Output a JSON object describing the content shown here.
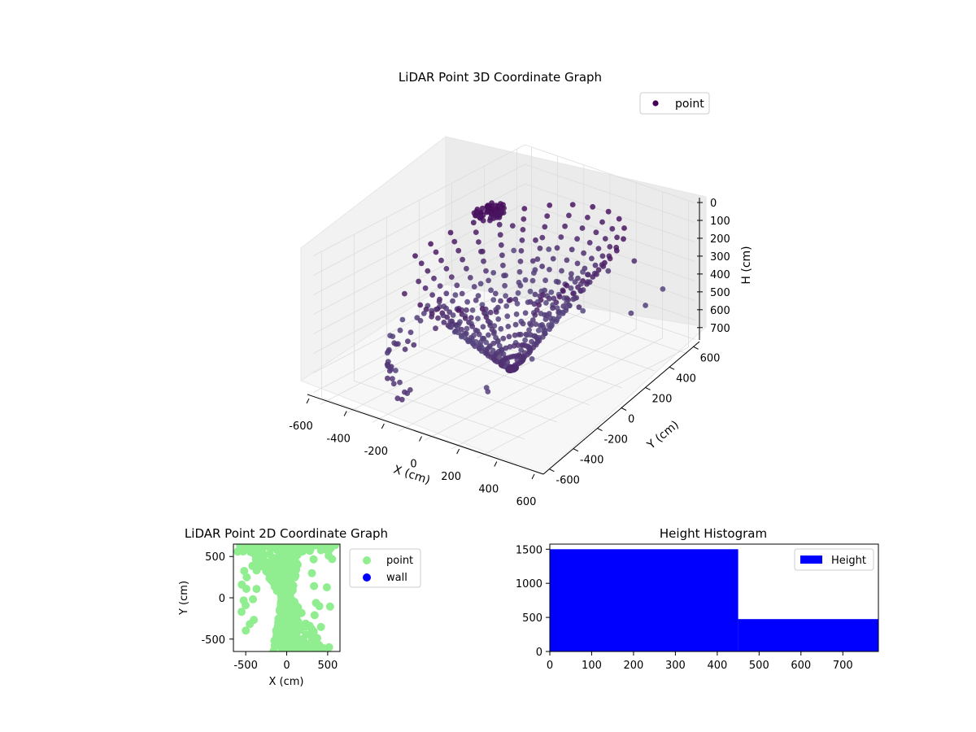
{
  "chart_data": [
    {
      "type": "scatter",
      "projection": "3d",
      "title": "LiDAR Point 3D Coordinate Graph",
      "xlabel": "X (cm)",
      "ylabel": "Y (cm)",
      "zlabel": "H (cm)",
      "xlim": [
        -650,
        650
      ],
      "ylim": [
        -650,
        650
      ],
      "zlim": [
        750,
        0
      ],
      "xticks": [
        -600,
        -400,
        -200,
        0,
        200,
        400,
        600
      ],
      "yticks": [
        -600,
        -400,
        -200,
        0,
        200,
        400,
        600
      ],
      "zticks": [
        0,
        100,
        200,
        300,
        400,
        500,
        600,
        700
      ],
      "zaxis_inverted": true,
      "colormap": "viridis",
      "legend": {
        "entries": [
          "point"
        ],
        "placement": "upper-right"
      },
      "series": [
        {
          "name": "point",
          "color": "#440154"
        }
      ],
      "grid": true
    },
    {
      "type": "scatter",
      "title": "LiDAR Point 2D Coordinate Graph",
      "xlabel": "X (cm)",
      "ylabel": "Y (cm)",
      "xlim": [
        -650,
        650
      ],
      "ylim": [
        -650,
        650
      ],
      "xticks": [
        -500,
        0,
        500
      ],
      "yticks": [
        -500,
        0,
        500
      ],
      "legend": {
        "entries": [
          "point",
          "wall"
        ],
        "placement": "outside-right"
      },
      "series": [
        {
          "name": "point",
          "color": "#90ee90"
        },
        {
          "name": "wall",
          "color": "#0000ff"
        }
      ],
      "grid": false
    },
    {
      "type": "bar",
      "title": "Height Histogram",
      "xlabel": "",
      "ylabel": "",
      "xlim": [
        0,
        785
      ],
      "ylim": [
        0,
        1575
      ],
      "xticks": [
        0,
        100,
        200,
        300,
        400,
        500,
        600,
        700
      ],
      "yticks": [
        0,
        500,
        1000,
        1500
      ],
      "bins": [
        {
          "start": 0,
          "end": 450,
          "count": 1500
        },
        {
          "start": 450,
          "end": 785,
          "count": 475
        }
      ],
      "color": "#0000ff",
      "legend": {
        "entries": [
          "Height"
        ],
        "placement": "upper-right"
      },
      "grid": false
    }
  ]
}
